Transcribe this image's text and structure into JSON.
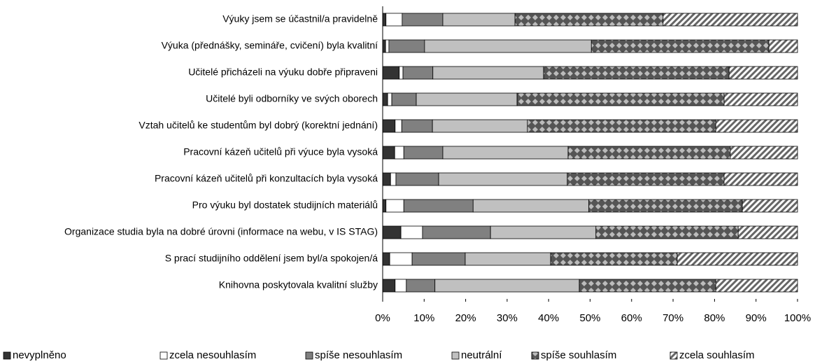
{
  "chart_data": {
    "type": "stacked_barh",
    "categories": [
      "Výuky jsem se účastnil/a pravidelně",
      "Výuka (přednášky, semináře, cvičení) byla kvalitní",
      "Učitelé přicházeli na výuku dobře připraveni",
      "Učitelé byli odborníky ve svých oborech",
      "Vztah učitelů ke studentům byl dobrý (korektní jednání)",
      "Pracovní kázeň učitelů při výuce byla vysoká",
      "Pracovní kázeň učitelů při konzultacích byla vysoká",
      "Pro výuku byl dostatek studijních materiálů",
      "Organizace studia byla na dobré úrovni (informace na webu, v IS STAG)",
      "S prací studijního oddělení jsem byl/a spokojen/á",
      "Knihovna poskytovala kvalitní služby"
    ],
    "series": [
      {
        "name": "nevyplněno",
        "color": "#333333",
        "pattern": "solid",
        "values": [
          0.8,
          0.7,
          4.0,
          1.2,
          3.0,
          2.9,
          1.9,
          0.8,
          4.4,
          1.7,
          3.0
        ]
      },
      {
        "name": "zcela nesouhlasím",
        "color": "#ffffff",
        "pattern": "solid",
        "values": [
          3.9,
          0.8,
          0.9,
          1.0,
          1.6,
          2.2,
          1.3,
          4.3,
          5.2,
          5.4,
          2.7
        ]
      },
      {
        "name": "spíše nesouhlasím",
        "color": "#808080",
        "pattern": "solid",
        "values": [
          9.8,
          8.6,
          7.2,
          5.9,
          7.4,
          9.4,
          10.3,
          16.7,
          16.4,
          12.8,
          6.9
        ]
      },
      {
        "name": "neutrální",
        "color": "#c0c0c0",
        "pattern": "solid",
        "values": [
          17.4,
          40.2,
          26.7,
          24.3,
          22.9,
          30.2,
          31.0,
          27.9,
          25.4,
          20.6,
          34.8
        ]
      },
      {
        "name": "spíše souhlasím",
        "color": "#555555",
        "pattern": "diamond",
        "values": [
          35.7,
          42.8,
          44.7,
          49.9,
          45.4,
          39.1,
          37.8,
          37.0,
          34.3,
          30.5,
          32.9
        ]
      },
      {
        "name": "zcela souhlasím",
        "color": "#666666",
        "pattern": "hatch",
        "values": [
          32.4,
          6.9,
          16.5,
          17.7,
          19.7,
          16.2,
          17.7,
          13.3,
          14.3,
          29.0,
          19.7
        ]
      }
    ],
    "xlim": [
      0,
      100
    ],
    "xticks": [
      {
        "value": 0,
        "label": "0%"
      },
      {
        "value": 10,
        "label": "10%"
      },
      {
        "value": 20,
        "label": "20%"
      },
      {
        "value": 30,
        "label": "30%"
      },
      {
        "value": 40,
        "label": "40%"
      },
      {
        "value": 50,
        "label": "50%"
      },
      {
        "value": 60,
        "label": "60%"
      },
      {
        "value": 70,
        "label": "70%"
      },
      {
        "value": 80,
        "label": "80%"
      },
      {
        "value": 90,
        "label": "90%"
      },
      {
        "value": 100,
        "label": "100%"
      }
    ],
    "legend": "bottom"
  }
}
